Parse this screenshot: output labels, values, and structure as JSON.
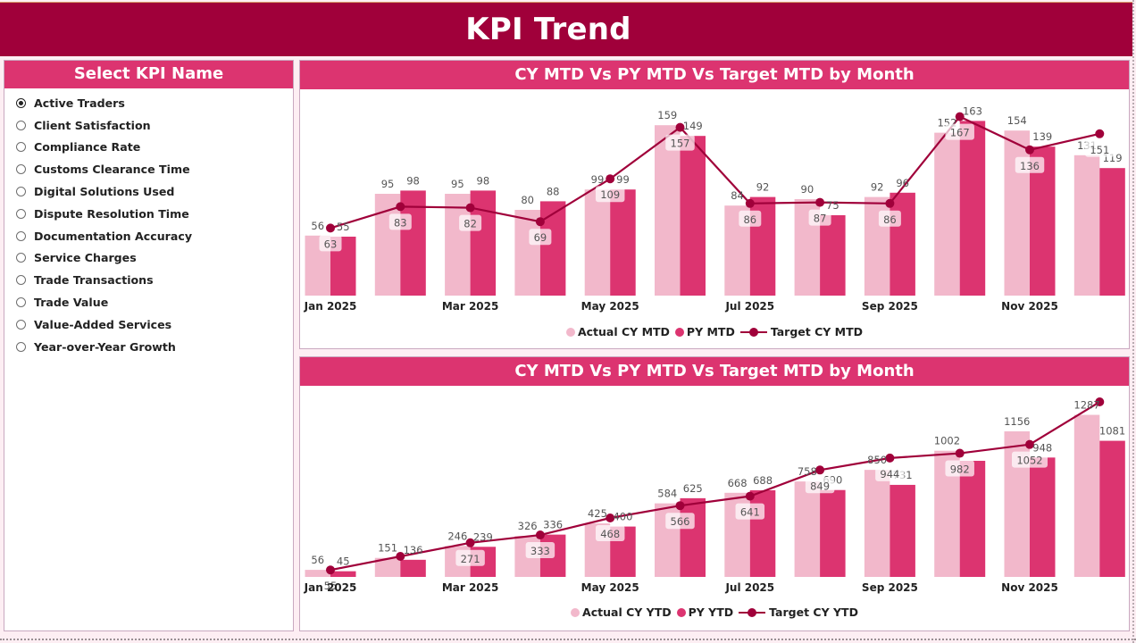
{
  "header": {
    "title": "KPI Trend"
  },
  "colors": {
    "header_bg": "#a0003a",
    "panel_header_bg": "#dc3470",
    "actual": "#f2b8cb",
    "py": "#dc3470",
    "target": "#a0003a",
    "page_bg": "#fdeef3"
  },
  "slicer": {
    "title": "Select KPI Name",
    "selected": "Active Traders",
    "items": [
      {
        "label": "Active Traders",
        "checked": true
      },
      {
        "label": "Client Satisfaction",
        "checked": false
      },
      {
        "label": "Compliance Rate",
        "checked": false
      },
      {
        "label": "Customs Clearance Time",
        "checked": false
      },
      {
        "label": "Digital Solutions Used",
        "checked": false
      },
      {
        "label": "Dispute Resolution Time",
        "checked": false
      },
      {
        "label": "Documentation Accuracy",
        "checked": false
      },
      {
        "label": "Service Charges",
        "checked": false
      },
      {
        "label": "Trade Transactions",
        "checked": false
      },
      {
        "label": "Trade Value",
        "checked": false
      },
      {
        "label": "Value-Added Services",
        "checked": false
      },
      {
        "label": "Year-over-Year Growth",
        "checked": false
      }
    ]
  },
  "chart_data": [
    {
      "type": "bar",
      "combo": "clustered column + line",
      "title": "CY MTD Vs PY MTD Vs Target MTD by Month",
      "categories": [
        "Jan 2025",
        "Feb 2025",
        "Mar 2025",
        "Apr 2025",
        "May 2025",
        "Jun 2025",
        "Jul 2025",
        "Aug 2025",
        "Sep 2025",
        "Oct 2025",
        "Nov 2025",
        "Dec 2025"
      ],
      "tick_labels": [
        "Jan 2025",
        "",
        "Mar 2025",
        "",
        "May 2025",
        "",
        "Jul 2025",
        "",
        "Sep 2025",
        "",
        "Nov 2025",
        ""
      ],
      "series": [
        {
          "name": "Actual CY MTD",
          "type": "bar",
          "values": [
            56,
            95,
            95,
            80,
            99,
            159,
            84,
            90,
            92,
            152,
            154,
            131
          ]
        },
        {
          "name": "PY MTD",
          "type": "bar",
          "values": [
            55,
            98,
            98,
            88,
            99,
            149,
            92,
            75,
            96,
            163,
            139,
            119
          ]
        },
        {
          "name": "Target CY MTD",
          "type": "line",
          "values": [
            63,
            83,
            82,
            69,
            109,
            157,
            86,
            87,
            86,
            167,
            136,
            151
          ]
        }
      ],
      "legend": [
        "Actual CY MTD",
        "PY MTD",
        "Target CY MTD"
      ],
      "legend_position": "bottom-center",
      "xlabel": "",
      "ylabel": "",
      "ylim": [
        0,
        170
      ],
      "grid": false
    },
    {
      "type": "bar",
      "combo": "clustered column + line",
      "title": "CY MTD Vs PY MTD Vs Target MTD by Month",
      "categories": [
        "Jan 2025",
        "Feb 2025",
        "Mar 2025",
        "Apr 2025",
        "May 2025",
        "Jun 2025",
        "Jul 2025",
        "Aug 2025",
        "Sep 2025",
        "Oct 2025",
        "Nov 2025",
        "Dec 2025"
      ],
      "tick_labels": [
        "Jan 2025",
        "",
        "Mar 2025",
        "",
        "May 2025",
        "",
        "Jul 2025",
        "",
        "Sep 2025",
        "",
        "Nov 2025",
        ""
      ],
      "series": [
        {
          "name": "Actual CY YTD",
          "type": "bar",
          "values": [
            56,
            151,
            246,
            326,
            425,
            584,
            668,
            758,
            850,
            1002,
            1156,
            1287
          ],
          "labels": [
            "56",
            "151",
            "246",
            "326",
            "425",
            "584",
            "668",
            "758",
            "850",
            "1002",
            "1156",
            "1287"
          ]
        },
        {
          "name": "PY YTD",
          "type": "bar",
          "values": [
            45,
            136,
            239,
            336,
            400,
            625,
            688,
            690,
            731,
            922,
            948,
            1081
          ],
          "labels": [
            "45",
            "136",
            "239",
            "336",
            "400",
            "625",
            "688",
            "690",
            "731",
            "",
            "948",
            "1081"
          ]
        },
        {
          "name": "Target CY YTD",
          "type": "line",
          "values": [
            55,
            163,
            271,
            333,
            468,
            566,
            641,
            849,
            944,
            982,
            1052,
            1390
          ],
          "labels": [
            "55",
            "",
            "271",
            "333",
            "468",
            "566",
            "641",
            "849",
            "944",
            "982",
            "1052",
            ""
          ]
        }
      ],
      "legend": [
        "Actual CY YTD",
        "PY YTD",
        "Target CY YTD"
      ],
      "legend_position": "bottom-center",
      "xlabel": "",
      "ylabel": "",
      "ylim": [
        0,
        1420
      ],
      "grid": false
    }
  ]
}
